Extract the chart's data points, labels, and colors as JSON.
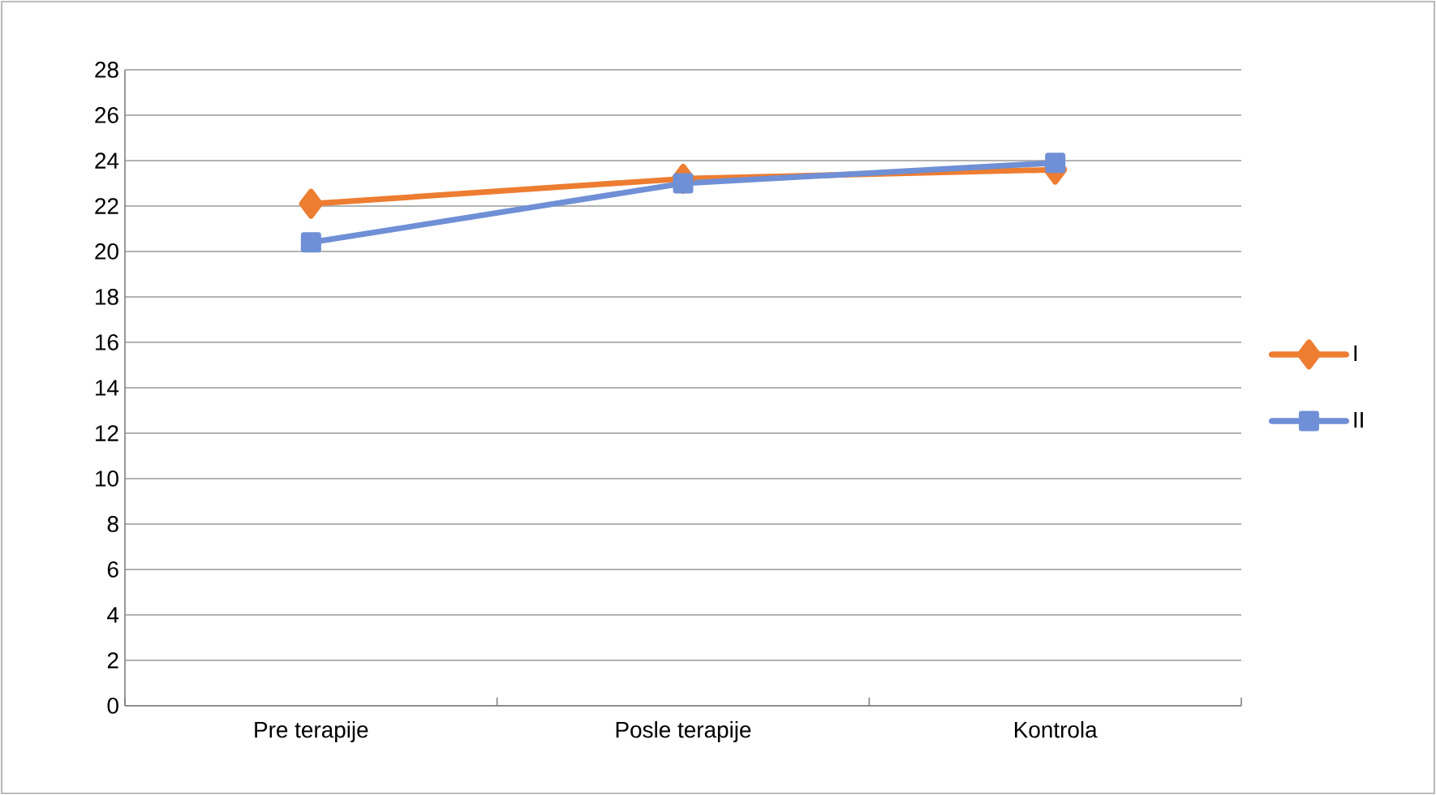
{
  "chart_data": {
    "type": "line",
    "categories": [
      "Pre terapije",
      "Posle terapije",
      "Kontrola"
    ],
    "series": [
      {
        "name": "I",
        "color": "#ed7d31",
        "values": [
          22.1,
          23.2,
          23.6
        ],
        "marker": "diamond"
      },
      {
        "name": "II",
        "color": "#6f8fd6",
        "values": [
          20.4,
          23.0,
          23.9
        ],
        "marker": "square"
      }
    ],
    "ylim": [
      0,
      28
    ],
    "yticks": [
      0,
      2,
      4,
      6,
      8,
      10,
      12,
      14,
      16,
      18,
      20,
      22,
      24,
      26,
      28
    ],
    "grid": "y",
    "legend": "right",
    "line_style": "solid"
  }
}
